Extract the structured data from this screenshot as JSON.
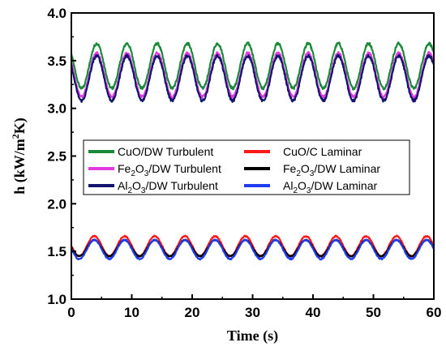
{
  "chart_data": {
    "type": "line",
    "title": "",
    "xlabel": "Time (s)",
    "ylabel_parts": [
      "h (kW/m",
      "2",
      "K)"
    ],
    "xlim": [
      0,
      60
    ],
    "ylim": [
      1.0,
      4.0
    ],
    "x_ticks": [
      0,
      10,
      20,
      30,
      40,
      50,
      60
    ],
    "x_tick_labels": [
      "0",
      "10",
      "20",
      "30",
      "40",
      "50",
      "60"
    ],
    "y_ticks": [
      1.0,
      1.5,
      2.0,
      2.5,
      3.0,
      3.5,
      4.0
    ],
    "y_tick_labels": [
      "1.0",
      "1.5",
      "2.0",
      "2.5",
      "3.0",
      "3.5",
      "4.0"
    ],
    "grid": false,
    "legend_position": "center",
    "series": [
      {
        "name_parts": [
          "CuO/DW Turbulent"
        ],
        "color": "#1a8a3a",
        "period_s": 5,
        "min": 3.21,
        "max": 3.68,
        "peak_at_s": 4.2
      },
      {
        "name_parts": [
          "Fe",
          "2",
          "O",
          "3",
          "/DW Turbulent"
        ],
        "color": "#e23be0",
        "period_s": 5,
        "min": 3.12,
        "max": 3.58,
        "peak_at_s": 4.2
      },
      {
        "name_parts": [
          "Al",
          "2",
          "O",
          "3",
          "/DW Turbulent"
        ],
        "color": "#14146e",
        "period_s": 5,
        "min": 3.08,
        "max": 3.55,
        "peak_at_s": 4.2
      },
      {
        "name_parts": [
          "CuO/C Laminar"
        ],
        "color": "#ff1a1a",
        "period_s": 5,
        "min": 1.45,
        "max": 1.66,
        "peak_at_s": 3.8
      },
      {
        "name_parts": [
          "Fe",
          "2",
          "O",
          "3",
          "/DW Laminar"
        ],
        "color": "#000000",
        "period_s": 5,
        "min": 1.45,
        "max": 1.62,
        "peak_at_s": 3.8
      },
      {
        "name_parts": [
          "Al",
          "2",
          "O",
          "3",
          "/DW Laminar"
        ],
        "color": "#1f3df0",
        "period_s": 5,
        "min": 1.42,
        "max": 1.62,
        "peak_at_s": 3.8
      }
    ]
  }
}
